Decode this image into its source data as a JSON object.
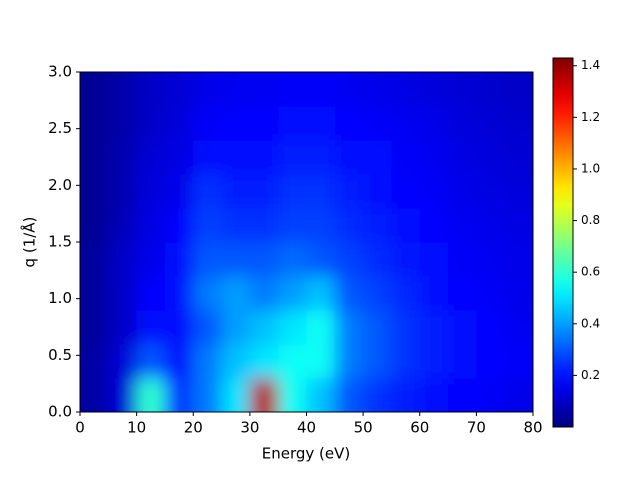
{
  "chart_data": {
    "type": "heatmap",
    "xlabel": "Energy   (eV)",
    "ylabel": "q   (1/Å)",
    "xlim": [
      0,
      80
    ],
    "ylim": [
      0,
      3.0
    ],
    "xticks": [
      0,
      10,
      20,
      30,
      40,
      50,
      60,
      70,
      80
    ],
    "yticks": [
      {
        "value": 0,
        "label": "0.0"
      },
      0.5,
      {
        "value": 1,
        "label": "1.0"
      },
      1.5,
      {
        "value": 2,
        "label": "2.0"
      },
      2.5,
      {
        "value": 3,
        "label": "3.0"
      }
    ],
    "colormap": "jet",
    "clim": [
      0,
      1.43
    ],
    "cticks": [
      0.2,
      0.4,
      0.6,
      0.8,
      {
        "value": 1,
        "label": "1.0"
      },
      1.2,
      1.4
    ],
    "z": [
      [
        0.05,
        0.12,
        0.6,
        0.25,
        0.35,
        0.5,
        1.35,
        0.55,
        0.45,
        0.3,
        0.25,
        0.22,
        0.2,
        0.18,
        0.17,
        0.15
      ],
      [
        0.05,
        0.12,
        0.3,
        0.2,
        0.35,
        0.45,
        0.5,
        0.55,
        0.55,
        0.35,
        0.3,
        0.25,
        0.22,
        0.2,
        0.18,
        0.17
      ],
      [
        0.04,
        0.1,
        0.2,
        0.2,
        0.3,
        0.4,
        0.45,
        0.5,
        0.55,
        0.35,
        0.3,
        0.25,
        0.22,
        0.2,
        0.18,
        0.16
      ],
      [
        0.04,
        0.1,
        0.18,
        0.2,
        0.35,
        0.4,
        0.35,
        0.4,
        0.45,
        0.3,
        0.27,
        0.23,
        0.2,
        0.18,
        0.17,
        0.15
      ],
      [
        0.04,
        0.1,
        0.15,
        0.2,
        0.3,
        0.3,
        0.3,
        0.33,
        0.3,
        0.27,
        0.24,
        0.21,
        0.19,
        0.17,
        0.16,
        0.15
      ],
      [
        0.03,
        0.08,
        0.14,
        0.18,
        0.27,
        0.25,
        0.25,
        0.27,
        0.27,
        0.24,
        0.22,
        0.2,
        0.18,
        0.16,
        0.15,
        0.14
      ],
      [
        0.03,
        0.07,
        0.13,
        0.15,
        0.25,
        0.22,
        0.22,
        0.25,
        0.25,
        0.22,
        0.2,
        0.18,
        0.17,
        0.15,
        0.14,
        0.13
      ],
      [
        0.03,
        0.07,
        0.12,
        0.14,
        0.2,
        0.2,
        0.2,
        0.22,
        0.22,
        0.2,
        0.19,
        0.17,
        0.16,
        0.14,
        0.13,
        0.12
      ],
      [
        0.03,
        0.06,
        0.1,
        0.13,
        0.17,
        0.18,
        0.18,
        0.19,
        0.2,
        0.18,
        0.17,
        0.16,
        0.15,
        0.13,
        0.12,
        0.11
      ],
      [
        0.03,
        0.06,
        0.1,
        0.12,
        0.15,
        0.16,
        0.16,
        0.17,
        0.17,
        0.16,
        0.15,
        0.14,
        0.13,
        0.12,
        0.11,
        0.1
      ]
    ]
  }
}
